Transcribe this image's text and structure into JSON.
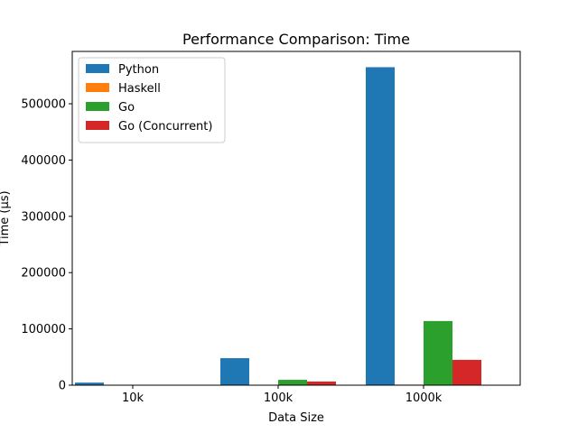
{
  "chart_data": {
    "type": "bar",
    "title": "Performance Comparison: Time",
    "xlabel": "Data Size",
    "ylabel": "Time (µs)",
    "categories": [
      "10k",
      "100k",
      "1000k"
    ],
    "series": [
      {
        "name": "Python",
        "color": "#1f77b4",
        "values": [
          4600,
          48000,
          565000
        ]
      },
      {
        "name": "Haskell",
        "color": "#ff7f0e",
        "values": [
          100,
          300,
          1000
        ]
      },
      {
        "name": "Go",
        "color": "#2ca02c",
        "values": [
          700,
          9500,
          114000
        ]
      },
      {
        "name": "Go (Concurrent)",
        "color": "#d62728",
        "values": [
          500,
          6500,
          45000
        ]
      }
    ],
    "ylim": [
      0,
      593000
    ],
    "yticks": [
      0,
      100000,
      200000,
      300000,
      400000,
      500000
    ],
    "ytick_labels": [
      "0",
      "100000",
      "200000",
      "300000",
      "400000",
      "500000"
    ],
    "legend": "top-left",
    "grid": false
  }
}
